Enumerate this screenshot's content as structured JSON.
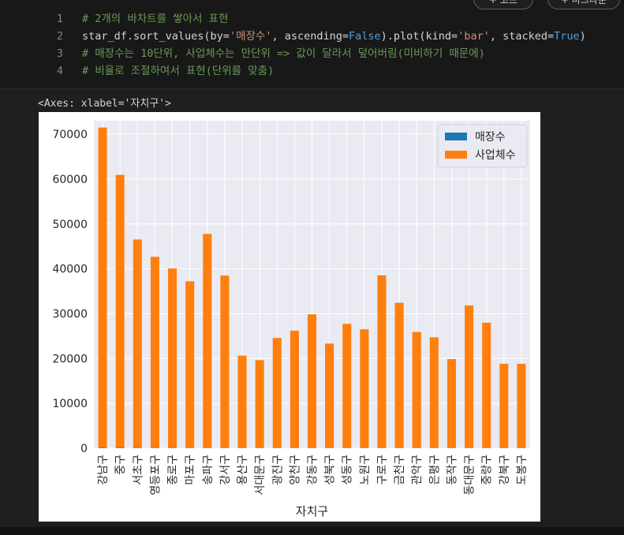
{
  "header_buttons": [
    {
      "label": "+ 코드"
    },
    {
      "label": "+ 마크다운"
    }
  ],
  "code_cell": {
    "lines": [
      {
        "num": "1",
        "parts": [
          {
            "t": "# 2개의 바차트를 쌓아서 표현",
            "c": "cm"
          }
        ]
      },
      {
        "num": "2",
        "parts": [
          {
            "t": "star_df.sort_values(by=",
            "c": ""
          },
          {
            "t": "'매장수'",
            "c": "st"
          },
          {
            "t": ", ascending=",
            "c": ""
          },
          {
            "t": "False",
            "c": "kw"
          },
          {
            "t": ").plot(kind=",
            "c": ""
          },
          {
            "t": "'bar'",
            "c": "st"
          },
          {
            "t": ", stacked=",
            "c": ""
          },
          {
            "t": "True",
            "c": "kw"
          },
          {
            "t": ")",
            "c": ""
          }
        ]
      },
      {
        "num": "3",
        "parts": [
          {
            "t": "# 매장수는 10단위, 사업체수는 만단위 => 값이 달라서 덮어버림(미비하기 때문에)",
            "c": "cm"
          }
        ]
      },
      {
        "num": "4",
        "parts": [
          {
            "t": "# 비율로 조절하여서 표현(단위를 맞춤)",
            "c": "cm"
          }
        ]
      }
    ]
  },
  "output": {
    "repr": "<Axes: xlabel='자치구'>"
  },
  "colors": {
    "bg_axes": "#eaeaf2",
    "grid": "#ffffff",
    "series_store": "#1f77b4",
    "series_business": "#ff7f0e",
    "text": "#262626"
  },
  "chart_data": {
    "type": "bar",
    "stacked": true,
    "xlabel": "자치구",
    "ylabel": "",
    "ylim": [
      0,
      73000
    ],
    "yticks": [
      0,
      10000,
      20000,
      30000,
      40000,
      50000,
      60000,
      70000
    ],
    "grid": true,
    "legend_position": "top-right",
    "categories": [
      "강남구",
      "중구",
      "서초구",
      "영등포구",
      "종로구",
      "마포구",
      "송파구",
      "강서구",
      "용산구",
      "서대문구",
      "광진구",
      "양천구",
      "강동구",
      "성북구",
      "성동구",
      "노원구",
      "구로구",
      "금천구",
      "관악구",
      "은평구",
      "동작구",
      "동대문구",
      "중랑구",
      "강북구",
      "도봉구"
    ],
    "series": [
      {
        "name": "매장수",
        "values": [
          87,
          83,
          72,
          63,
          61,
          58,
          57,
          39,
          39,
          38,
          34,
          33,
          29,
          29,
          27,
          25,
          25,
          24,
          24,
          23,
          22,
          20,
          19,
          16,
          15
        ]
      },
      {
        "name": "사업체수",
        "values": [
          71400,
          60850,
          46450,
          42600,
          40000,
          37150,
          47700,
          38450,
          20600,
          19600,
          24550,
          26150,
          29800,
          23300,
          27700,
          26500,
          38500,
          32400,
          25900,
          24700,
          19850,
          31800,
          27950,
          18800,
          18800
        ]
      }
    ]
  }
}
